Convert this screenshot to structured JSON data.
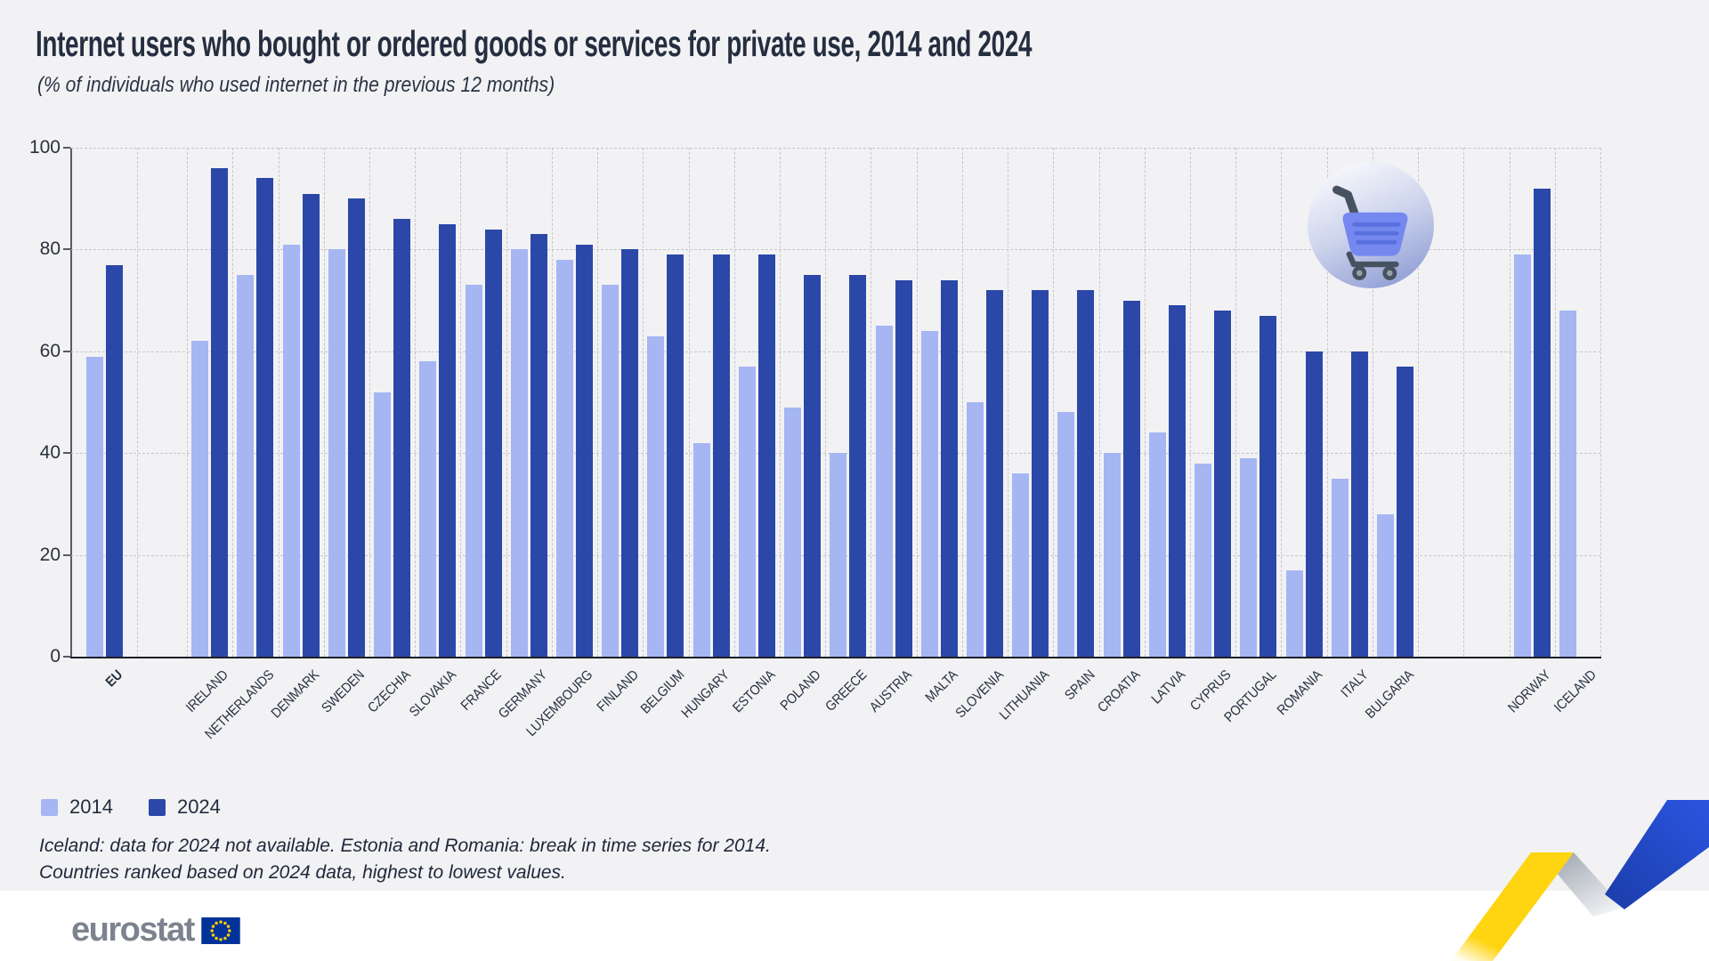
{
  "title": "Internet users who bought or ordered goods or services for private use, 2014 and 2024",
  "subtitle": "(% of individuals who used internet in the previous 12 months)",
  "legend": {
    "items": [
      {
        "label": "2014",
        "color": "#a5b6f3"
      },
      {
        "label": "2024",
        "color": "#2b48a8"
      }
    ]
  },
  "footnotes": [
    "Iceland: data for 2024 not available. Estonia and Romania: break in time series for 2014.",
    "Countries ranked based on 2024 data, highest to lowest values."
  ],
  "logo": {
    "text": "eurostat"
  },
  "colors": {
    "background": "#f2f2f4",
    "footer_band": "#ffffff",
    "bar_2014": "#a5b6f3",
    "bar_2024": "#2b48a8",
    "grid": "#c6c7ca",
    "axis": "#565b63",
    "text": "#232c3d",
    "logo_gray": "#7c838e",
    "flag_blue": "#003399",
    "flag_stars": "#ffcc00",
    "ribbon_yellow": "#ffd410",
    "ribbon_blue": "#2148cf"
  },
  "chart_data": {
    "type": "bar",
    "title": "Internet users who bought or ordered goods or services for private use, 2014 and 2024",
    "categories": [
      "EU",
      "IRELAND",
      "NETHERLANDS",
      "DENMARK",
      "SWEDEN",
      "CZECHIA",
      "SLOVAKIA",
      "FRANCE",
      "GERMANY",
      "LUXEMBOURG",
      "FINLAND",
      "BELGIUM",
      "HUNGARY",
      "ESTONIA",
      "POLAND",
      "GREECE",
      "AUSTRIA",
      "MALTA",
      "SLOVENIA",
      "LITHUANIA",
      "SPAIN",
      "CROATIA",
      "LATVIA",
      "CYPRUS",
      "PORTUGAL",
      "ROMANIA",
      "ITALY",
      "BULGARIA",
      "NORWAY",
      "ICELAND"
    ],
    "series": [
      {
        "name": "2014",
        "values": [
          59,
          62,
          75,
          81,
          80,
          52,
          58,
          73,
          80,
          78,
          73,
          63,
          42,
          57,
          49,
          40,
          65,
          64,
          50,
          36,
          48,
          40,
          44,
          38,
          39,
          17,
          35,
          28,
          79,
          68
        ]
      },
      {
        "name": "2024",
        "values": [
          77,
          96,
          94,
          91,
          90,
          86,
          85,
          84,
          83,
          81,
          80,
          79,
          79,
          79,
          75,
          75,
          74,
          74,
          72,
          72,
          72,
          70,
          69,
          68,
          67,
          60,
          60,
          57,
          92,
          null
        ]
      }
    ],
    "ylim": [
      0,
      100
    ],
    "yticks": [
      0,
      20,
      40,
      60,
      80,
      100
    ],
    "grid": "dashed",
    "legend_position": "bottom-left",
    "bold_categories": [
      "EU"
    ],
    "gaps": [
      {
        "after_index": 0,
        "cells": 1
      },
      {
        "after_index": 27,
        "cells": 2
      }
    ]
  }
}
